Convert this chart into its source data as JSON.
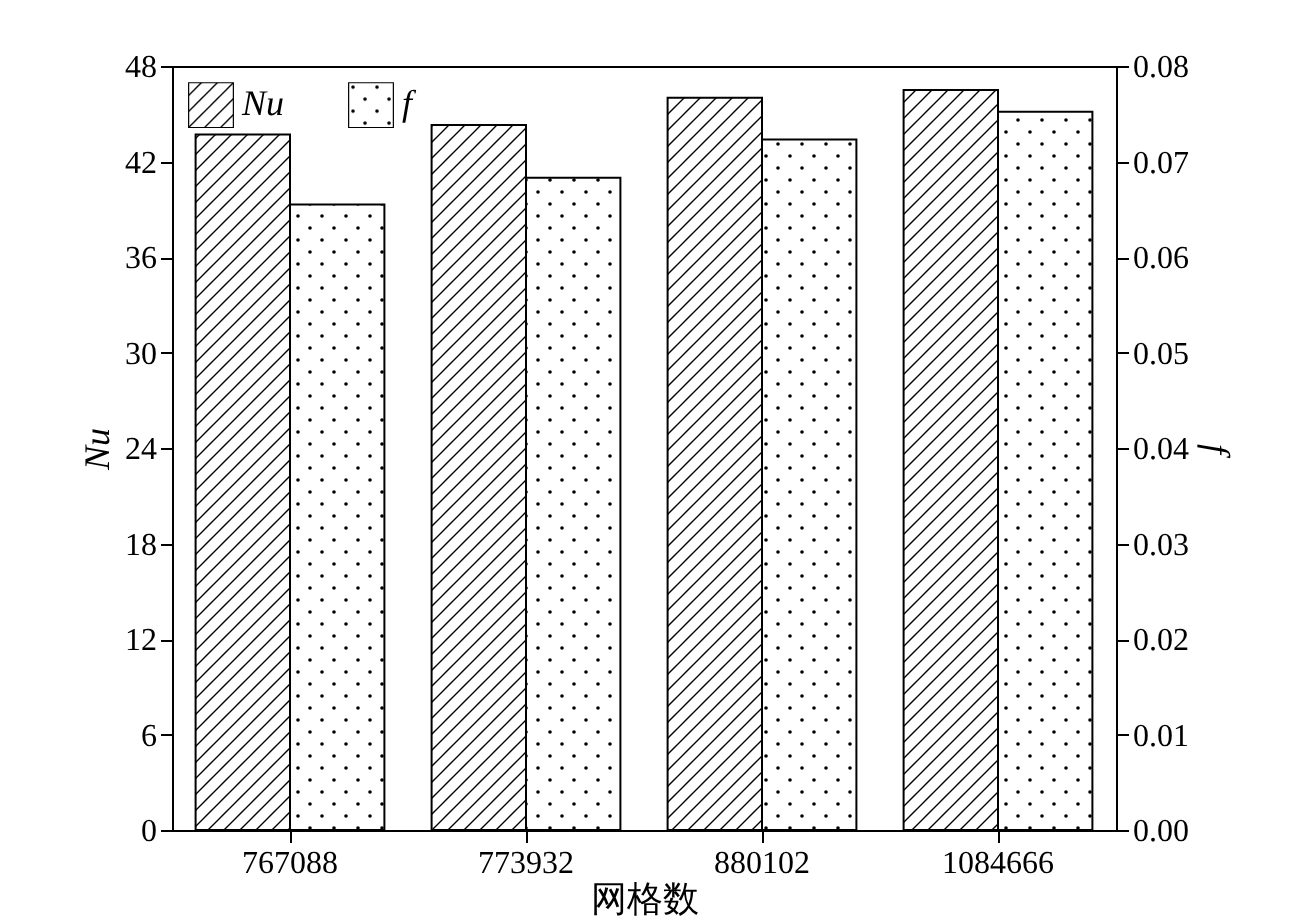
{
  "chart_data": {
    "type": "bar",
    "xlabel": "网格数",
    "ylabel": "Nu",
    "y2label": "f",
    "categories": [
      "767088",
      "773932",
      "880102",
      "1084666"
    ],
    "series": [
      {
        "name": "Nu",
        "color": "#000000",
        "values": [
          43.7,
          44.3,
          46.0,
          46.5
        ]
      },
      {
        "name": "f",
        "color": "#000000",
        "axis": "y2",
        "values": [
          0.0655,
          0.0683,
          0.0723,
          0.0752
        ]
      }
    ],
    "ylim": [
      0,
      48
    ],
    "yticks": [
      0,
      6,
      12,
      18,
      24,
      30,
      36,
      42,
      48
    ],
    "y2lim": [
      0,
      0.08
    ],
    "y2ticks": [
      {
        "value": 0,
        "label": "0.00"
      },
      {
        "value": 0.01,
        "label": "0.01"
      },
      {
        "value": 0.02,
        "label": "0.02"
      },
      {
        "value": 0.03,
        "label": "0.03"
      },
      {
        "value": 0.04,
        "label": "0.04"
      },
      {
        "value": 0.05,
        "label": "0.05"
      },
      {
        "value": 0.06,
        "label": "0.06"
      },
      {
        "value": 0.07,
        "label": "0.07"
      },
      {
        "value": 0.08,
        "label": "0.08"
      }
    ],
    "grid": false,
    "legend": "top left"
  }
}
